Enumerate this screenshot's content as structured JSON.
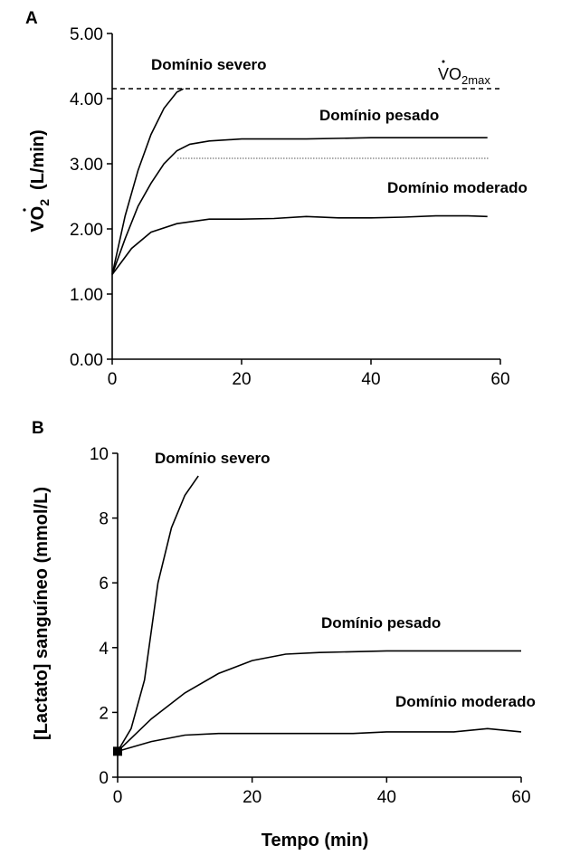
{
  "chart_data": [
    {
      "panel": "A",
      "type": "line",
      "ylabel": "VO2  (L/min)",
      "xlim": [
        0,
        60
      ],
      "ylim": [
        0,
        5
      ],
      "x_ticks": [
        "0",
        "20",
        "40",
        "60"
      ],
      "y_ticks": [
        "0.00",
        "1.00",
        "2.00",
        "3.00",
        "4.00",
        "5.00"
      ],
      "series": [
        {
          "name": "Domínio severo",
          "points": [
            [
              0,
              1.3
            ],
            [
              2,
              2.2
            ],
            [
              4,
              2.9
            ],
            [
              6,
              3.45
            ],
            [
              8,
              3.85
            ],
            [
              10,
              4.1
            ],
            [
              11,
              4.15
            ]
          ]
        },
        {
          "name": "Domínio pesado",
          "points": [
            [
              0,
              1.3
            ],
            [
              2,
              1.85
            ],
            [
              4,
              2.35
            ],
            [
              6,
              2.7
            ],
            [
              8,
              3.0
            ],
            [
              10,
              3.2
            ],
            [
              12,
              3.3
            ],
            [
              15,
              3.35
            ],
            [
              20,
              3.38
            ],
            [
              30,
              3.38
            ],
            [
              40,
              3.4
            ],
            [
              50,
              3.4
            ],
            [
              58,
              3.4
            ]
          ]
        },
        {
          "name": "Domínio moderado",
          "points": [
            [
              0,
              1.3
            ],
            [
              3,
              1.7
            ],
            [
              6,
              1.95
            ],
            [
              10,
              2.08
            ],
            [
              15,
              2.15
            ],
            [
              20,
              2.15
            ],
            [
              25,
              2.16
            ],
            [
              30,
              2.19
            ],
            [
              35,
              2.17
            ],
            [
              40,
              2.17
            ],
            [
              45,
              2.18
            ],
            [
              50,
              2.2
            ],
            [
              55,
              2.2
            ],
            [
              58,
              2.19
            ]
          ]
        }
      ],
      "reference_lines": [
        {
          "label": "VO2max",
          "y": 4.15,
          "x": [
            0,
            60
          ],
          "style": "dashed"
        },
        {
          "y": 3.08,
          "x": [
            10,
            58
          ],
          "style": "dotted"
        }
      ]
    },
    {
      "panel": "B",
      "type": "line",
      "xlabel": "Tempo (min)",
      "ylabel": "[Lactato] sanguíneo (mmol/L)",
      "xlim": [
        0,
        60
      ],
      "ylim": [
        0,
        10
      ],
      "x_ticks": [
        "0",
        "20",
        "40",
        "60"
      ],
      "y_ticks": [
        "0",
        "2",
        "4",
        "6",
        "8",
        "10"
      ],
      "start_marker": [
        0,
        0.8
      ],
      "series": [
        {
          "name": "Domínio severo",
          "points": [
            [
              0,
              0.8
            ],
            [
              2,
              1.5
            ],
            [
              4,
              3.0
            ],
            [
              6,
              6.0
            ],
            [
              8,
              7.7
            ],
            [
              10,
              8.7
            ],
            [
              12,
              9.3
            ]
          ]
        },
        {
          "name": "Domínio pesado",
          "points": [
            [
              0,
              0.8
            ],
            [
              5,
              1.8
            ],
            [
              10,
              2.6
            ],
            [
              15,
              3.2
            ],
            [
              20,
              3.6
            ],
            [
              25,
              3.8
            ],
            [
              30,
              3.85
            ],
            [
              40,
              3.9
            ],
            [
              50,
              3.9
            ],
            [
              60,
              3.9
            ]
          ]
        },
        {
          "name": "Domínio moderado",
          "points": [
            [
              0,
              0.8
            ],
            [
              5,
              1.1
            ],
            [
              10,
              1.3
            ],
            [
              15,
              1.35
            ],
            [
              20,
              1.35
            ],
            [
              25,
              1.35
            ],
            [
              30,
              1.35
            ],
            [
              35,
              1.35
            ],
            [
              40,
              1.4
            ],
            [
              45,
              1.4
            ],
            [
              50,
              1.4
            ],
            [
              55,
              1.5
            ],
            [
              60,
              1.4
            ]
          ]
        }
      ]
    }
  ],
  "panelA": {
    "letter": "A",
    "ylabel_v": "V",
    "ylabel_o": "O",
    "ylabel_sub": "2",
    "ylabel_rest": "(L/min)",
    "vo2max_v": "V",
    "vo2max_o": "O",
    "vo2max_sub": "2max",
    "label_severo": "Domínio severo",
    "label_pesado": "Domínio pesado",
    "label_moderado": "Domínio moderado"
  },
  "panelB": {
    "letter": "B",
    "ylabel": "[Lactato] sanguíneo (mmol/L)",
    "xlabel": "Tempo (min)",
    "label_severo": "Domínio severo",
    "label_pesado": "Domínio pesado",
    "label_moderado": "Domínio moderado"
  }
}
